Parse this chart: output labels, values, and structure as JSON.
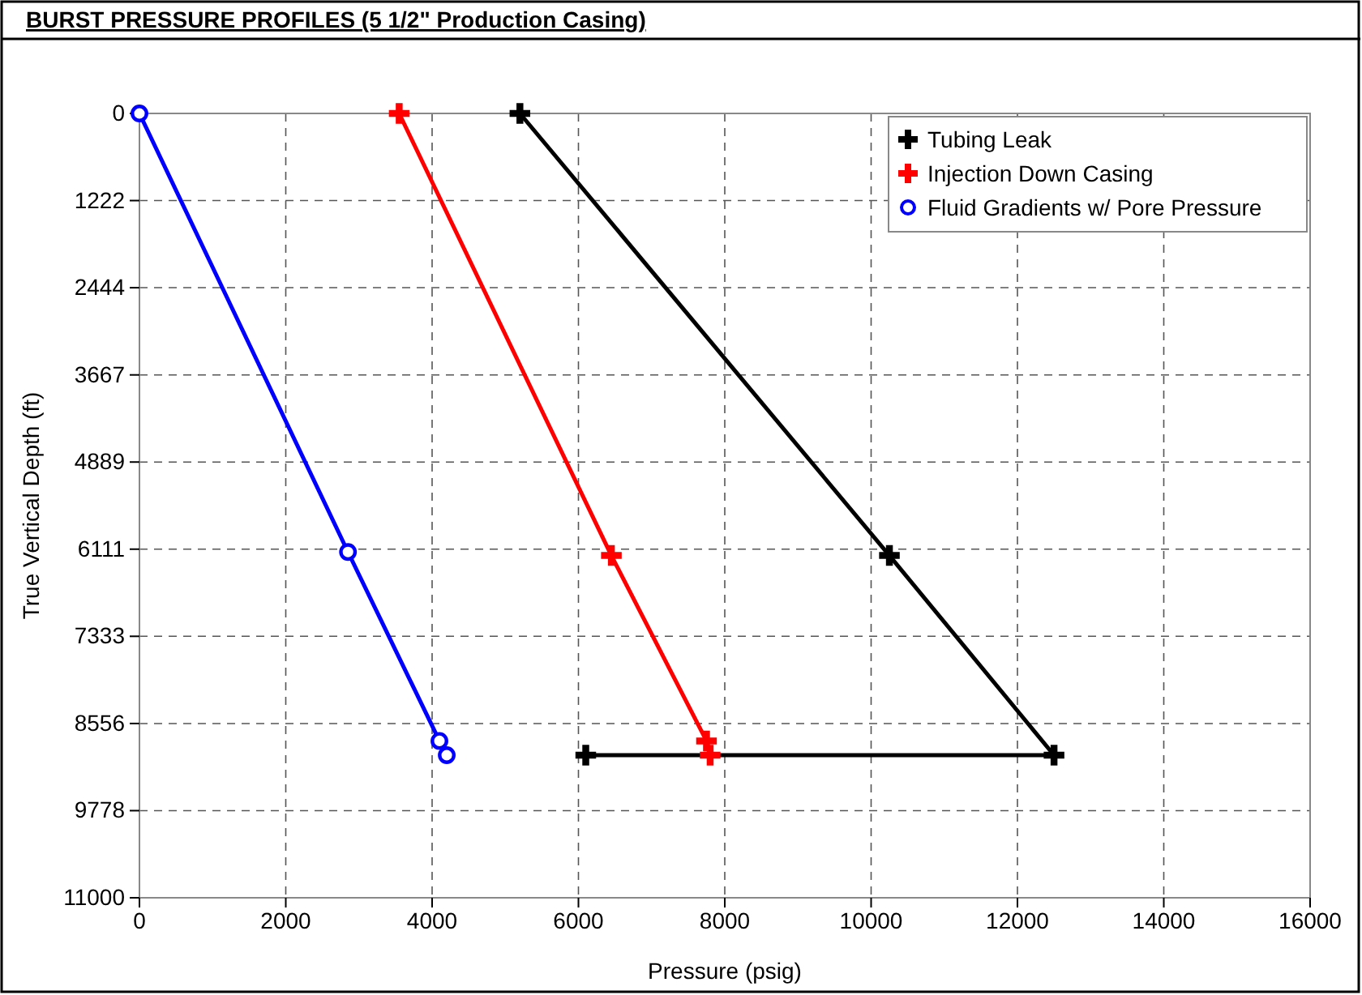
{
  "chart_data": {
    "type": "line",
    "title": "BURST PRESSURE PROFILES (5 1/2\" Production Casing)",
    "xlabel": "Pressure (psig)",
    "ylabel": "True Vertical Depth (ft)",
    "xlim": [
      0,
      16000
    ],
    "xticks": [
      0,
      2000,
      4000,
      6000,
      8000,
      10000,
      12000,
      14000,
      16000
    ],
    "ylim": [
      11000,
      0
    ],
    "yticks": [
      0,
      1222,
      2444,
      3667,
      4889,
      6111,
      7333,
      8556,
      9778,
      11000
    ],
    "grid": true,
    "legend": "top right",
    "line_style": "solid",
    "series": [
      {
        "name": "Tubing Leak",
        "color": "#000000",
        "marker": "cross",
        "x": [
          5200,
          10250,
          12500,
          6100
        ],
        "values": [
          0,
          6200,
          9000,
          9000
        ]
      },
      {
        "name": "Injection Down Casing",
        "color": "#ff0000",
        "marker": "cross",
        "x": [
          3550,
          6450,
          7750,
          7800
        ],
        "values": [
          0,
          6200,
          8800,
          9000
        ]
      },
      {
        "name": "Fluid Gradients w/ Pore Pressure",
        "color": "#0000ff",
        "marker": "circle",
        "x": [
          0,
          2850,
          4100,
          4200
        ],
        "values": [
          0,
          6150,
          8800,
          9000
        ]
      }
    ]
  }
}
